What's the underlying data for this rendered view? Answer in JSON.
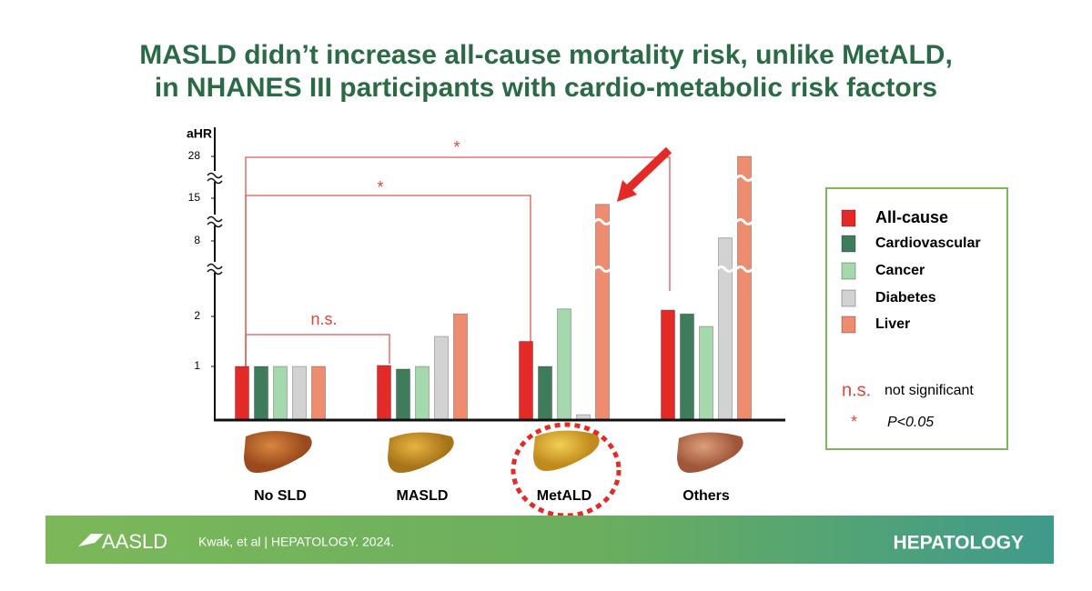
{
  "chart_data": {
    "type": "bar",
    "title": [
      "MASLD didn’t increase all-cause mortality risk, unlike MetALD,",
      "in NHANES III participants with cardio-metabolic risk factors"
    ],
    "y_label": "aHR",
    "categories": [
      "No SLD",
      "MASLD",
      "MetALD",
      "Others"
    ],
    "series": [
      {
        "name": "All-cause",
        "color": "#e42a27",
        "values": [
          1,
          1.02,
          1.5,
          2.5
        ]
      },
      {
        "name": "Cardiovascular",
        "color": "#3f7c5b",
        "values": [
          1,
          0.95,
          1,
          2.2
        ]
      },
      {
        "name": "Cancer",
        "color": "#a6d8ae",
        "values": [
          1,
          1,
          2.6,
          1.8
        ]
      },
      {
        "name": "Diabetes",
        "color": "#d2d2d2",
        "values": [
          1,
          1.6,
          0.1,
          8.5
        ]
      },
      {
        "name": "Liver",
        "color": "#ee8c70",
        "values": [
          1,
          2.2,
          14,
          28
        ]
      }
    ],
    "ylim": [
      0,
      28
    ],
    "yticks": [
      1,
      2,
      8,
      15,
      28
    ],
    "annotations": [
      "n.s.",
      "*",
      "*"
    ],
    "legend_notes": [
      {
        "symbol": "n.s.",
        "text": "not significant"
      },
      {
        "symbol": "*",
        "text": "P<0.05"
      }
    ]
  },
  "footer": {
    "logo": "AASLD",
    "citation": "Kwak, et al | HEPATOLOGY. 2024.",
    "journal": "HEPATOLOGY"
  }
}
